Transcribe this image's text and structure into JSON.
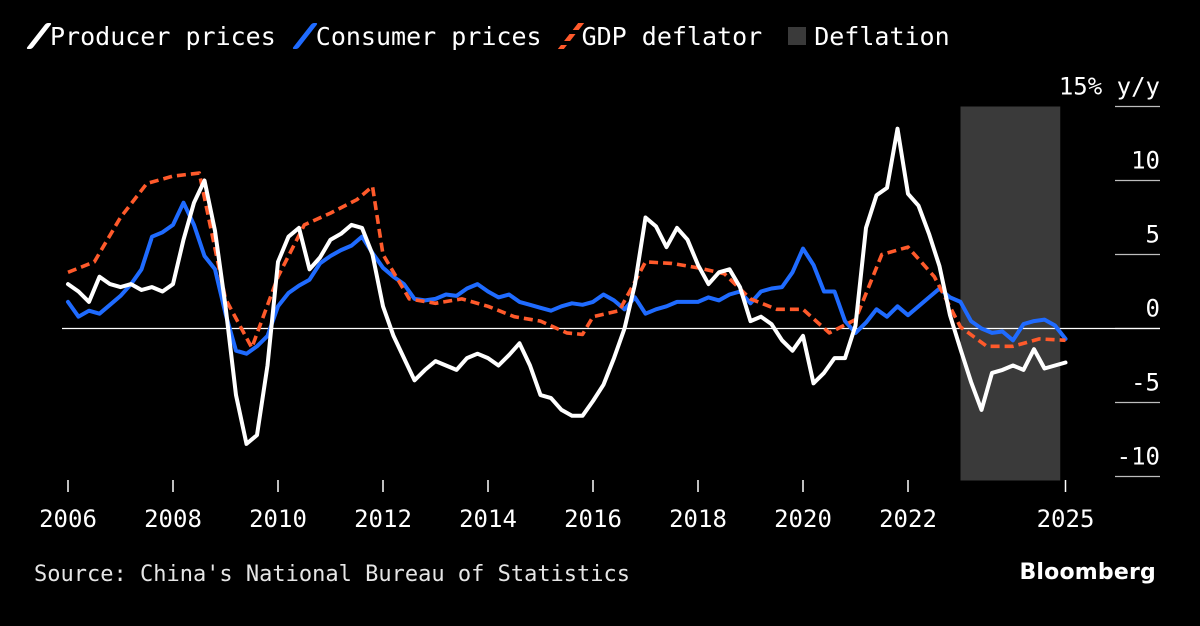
{
  "legend": {
    "producer": "Producer prices",
    "consumer": "Consumer prices",
    "gdp": "GDP deflator",
    "deflation": "Deflation"
  },
  "source": "Source: China's National Bureau of Statistics",
  "brand": "Bloomberg",
  "colors": {
    "producer": "#ffffff",
    "consumer": "#1f6bff",
    "gdp": "#ff5a2b",
    "deflation": "#3a3a3a"
  },
  "chart_data": {
    "type": "line",
    "title": "",
    "xlabel": "",
    "ylabel": "",
    "xlim": [
      2006,
      2025.3
    ],
    "ylim": [
      -10,
      15
    ],
    "x_ticks": [
      "2006",
      "2008",
      "2010",
      "2012",
      "2014",
      "2016",
      "2018",
      "2020",
      "2022",
      "2025"
    ],
    "x_tick_values": [
      2006,
      2008,
      2010,
      2012,
      2014,
      2016,
      2018,
      2020,
      2022,
      2025
    ],
    "y_ticks": [
      15,
      10,
      5,
      0,
      -5,
      -10
    ],
    "y_tick_labels": [
      "15% y/y",
      "10",
      "5",
      "0",
      "-5",
      "-10"
    ],
    "zero_line": true,
    "shaded_regions": [
      {
        "name": "Deflation",
        "x_start": 2023.0,
        "x_end": 2024.9
      }
    ],
    "series": [
      {
        "name": "Producer prices",
        "style": "solid",
        "x": [
          2006,
          2006.2,
          2006.4,
          2006.6,
          2006.8,
          2007.0,
          2007.2,
          2007.4,
          2007.6,
          2007.8,
          2008.0,
          2008.2,
          2008.4,
          2008.6,
          2008.8,
          2009.0,
          2009.2,
          2009.4,
          2009.6,
          2009.8,
          2010.0,
          2010.2,
          2010.4,
          2010.6,
          2010.8,
          2011.0,
          2011.2,
          2011.4,
          2011.6,
          2011.8,
          2012.0,
          2012.2,
          2012.4,
          2012.6,
          2012.8,
          2013.0,
          2013.2,
          2013.4,
          2013.6,
          2013.8,
          2014.0,
          2014.2,
          2014.4,
          2014.6,
          2014.8,
          2015.0,
          2015.2,
          2015.4,
          2015.6,
          2015.8,
          2016.0,
          2016.2,
          2016.4,
          2016.6,
          2016.8,
          2017.0,
          2017.2,
          2017.4,
          2017.6,
          2017.8,
          2018.0,
          2018.2,
          2018.4,
          2018.6,
          2018.8,
          2019.0,
          2019.2,
          2019.4,
          2019.6,
          2019.8,
          2020.0,
          2020.2,
          2020.4,
          2020.6,
          2020.8,
          2021.0,
          2021.2,
          2021.4,
          2021.6,
          2021.8,
          2022.0,
          2022.2,
          2022.4,
          2022.6,
          2022.8,
          2023.0,
          2023.2,
          2023.4,
          2023.6,
          2023.8,
          2024.0,
          2024.2,
          2024.4,
          2024.6,
          2024.8,
          2025.0
        ],
        "values": [
          3.0,
          2.5,
          1.8,
          3.5,
          3.0,
          2.8,
          3.0,
          2.6,
          2.8,
          2.5,
          3.0,
          6.0,
          8.5,
          10.0,
          6.6,
          1.5,
          -4.5,
          -7.8,
          -7.2,
          -2.5,
          4.5,
          6.2,
          6.8,
          4.0,
          4.8,
          6.0,
          6.4,
          7.0,
          6.8,
          5.0,
          1.5,
          -0.5,
          -2.0,
          -3.5,
          -2.8,
          -2.2,
          -2.5,
          -2.8,
          -2.0,
          -1.7,
          -2.0,
          -2.5,
          -1.8,
          -1.0,
          -2.5,
          -4.5,
          -4.7,
          -5.5,
          -5.9,
          -5.9,
          -4.9,
          -3.8,
          -2.0,
          0.0,
          3.0,
          7.5,
          6.9,
          5.5,
          6.8,
          6.0,
          4.3,
          3.0,
          3.8,
          4.0,
          2.8,
          0.5,
          0.8,
          0.3,
          -0.8,
          -1.5,
          -0.5,
          -3.7,
          -3.0,
          -2.0,
          -2.0,
          0.2,
          6.8,
          9.0,
          9.5,
          13.5,
          9.1,
          8.3,
          6.4,
          4.2,
          0.9,
          -1.4,
          -3.6,
          -5.5,
          -3.0,
          -2.8,
          -2.5,
          -2.8,
          -1.4,
          -2.7,
          -2.5,
          -2.3
        ]
      },
      {
        "name": "Consumer prices",
        "style": "solid",
        "x": [
          2006,
          2006.2,
          2006.4,
          2006.6,
          2006.8,
          2007.0,
          2007.2,
          2007.4,
          2007.6,
          2007.8,
          2008.0,
          2008.2,
          2008.4,
          2008.6,
          2008.8,
          2009.0,
          2009.2,
          2009.4,
          2009.6,
          2009.8,
          2010.0,
          2010.2,
          2010.4,
          2010.6,
          2010.8,
          2011.0,
          2011.2,
          2011.4,
          2011.6,
          2011.8,
          2012.0,
          2012.2,
          2012.4,
          2012.6,
          2012.8,
          2013.0,
          2013.2,
          2013.4,
          2013.6,
          2013.8,
          2014.0,
          2014.2,
          2014.4,
          2014.6,
          2014.8,
          2015.0,
          2015.2,
          2015.4,
          2015.6,
          2015.8,
          2016.0,
          2016.2,
          2016.4,
          2016.6,
          2016.8,
          2017.0,
          2017.2,
          2017.4,
          2017.6,
          2017.8,
          2018.0,
          2018.2,
          2018.4,
          2018.6,
          2018.8,
          2019.0,
          2019.2,
          2019.4,
          2019.6,
          2019.8,
          2020.0,
          2020.2,
          2020.4,
          2020.6,
          2020.8,
          2021.0,
          2021.2,
          2021.4,
          2021.6,
          2021.8,
          2022.0,
          2022.2,
          2022.4,
          2022.6,
          2022.8,
          2023.0,
          2023.2,
          2023.4,
          2023.6,
          2023.8,
          2024.0,
          2024.2,
          2024.4,
          2024.6,
          2024.8,
          2025.0
        ],
        "values": [
          1.8,
          0.8,
          1.2,
          1.0,
          1.6,
          2.2,
          3.0,
          4.0,
          6.2,
          6.5,
          7.0,
          8.5,
          7.0,
          4.9,
          4.0,
          1.0,
          -1.5,
          -1.7,
          -1.2,
          -0.5,
          1.5,
          2.4,
          2.9,
          3.3,
          4.4,
          4.9,
          5.3,
          5.6,
          6.2,
          5.1,
          4.1,
          3.5,
          3.0,
          2.0,
          1.9,
          2.0,
          2.3,
          2.2,
          2.7,
          3.0,
          2.5,
          2.1,
          2.3,
          1.8,
          1.6,
          1.4,
          1.2,
          1.5,
          1.7,
          1.6,
          1.8,
          2.3,
          1.9,
          1.3,
          2.1,
          1.0,
          1.3,
          1.5,
          1.8,
          1.8,
          1.8,
          2.1,
          1.9,
          2.3,
          2.5,
          1.7,
          2.5,
          2.7,
          2.8,
          3.8,
          5.4,
          4.3,
          2.5,
          2.5,
          0.5,
          -0.3,
          0.4,
          1.3,
          0.8,
          1.5,
          0.9,
          1.5,
          2.1,
          2.7,
          2.1,
          1.8,
          0.5,
          0.0,
          -0.3,
          -0.2,
          -0.8,
          0.3,
          0.5,
          0.6,
          0.2,
          -0.7
        ]
      },
      {
        "name": "GDP deflator",
        "style": "dashed",
        "x": [
          2006,
          2006.5,
          2007.0,
          2007.5,
          2008.0,
          2008.5,
          2009.0,
          2009.5,
          2010.0,
          2010.5,
          2011.0,
          2011.5,
          2011.8,
          2012.0,
          2012.5,
          2013.0,
          2013.5,
          2014.0,
          2014.5,
          2015.0,
          2015.5,
          2015.8,
          2016.0,
          2016.5,
          2017.0,
          2017.5,
          2018.0,
          2018.5,
          2019.0,
          2019.5,
          2020.0,
          2020.5,
          2021.0,
          2021.5,
          2022.0,
          2022.5,
          2023.0,
          2023.5,
          2024.0,
          2024.5,
          2025.0
        ],
        "values": [
          3.8,
          4.5,
          7.5,
          9.8,
          10.3,
          10.5,
          2.0,
          -1.3,
          3.5,
          7.0,
          7.8,
          8.7,
          9.6,
          5.0,
          2.0,
          1.7,
          2.0,
          1.5,
          0.8,
          0.5,
          -0.3,
          -0.4,
          0.8,
          1.2,
          4.5,
          4.4,
          4.1,
          3.7,
          2.0,
          1.3,
          1.3,
          -0.3,
          0.6,
          5.0,
          5.5,
          3.5,
          0.1,
          -1.2,
          -1.2,
          -0.7,
          -0.8
        ]
      }
    ]
  }
}
